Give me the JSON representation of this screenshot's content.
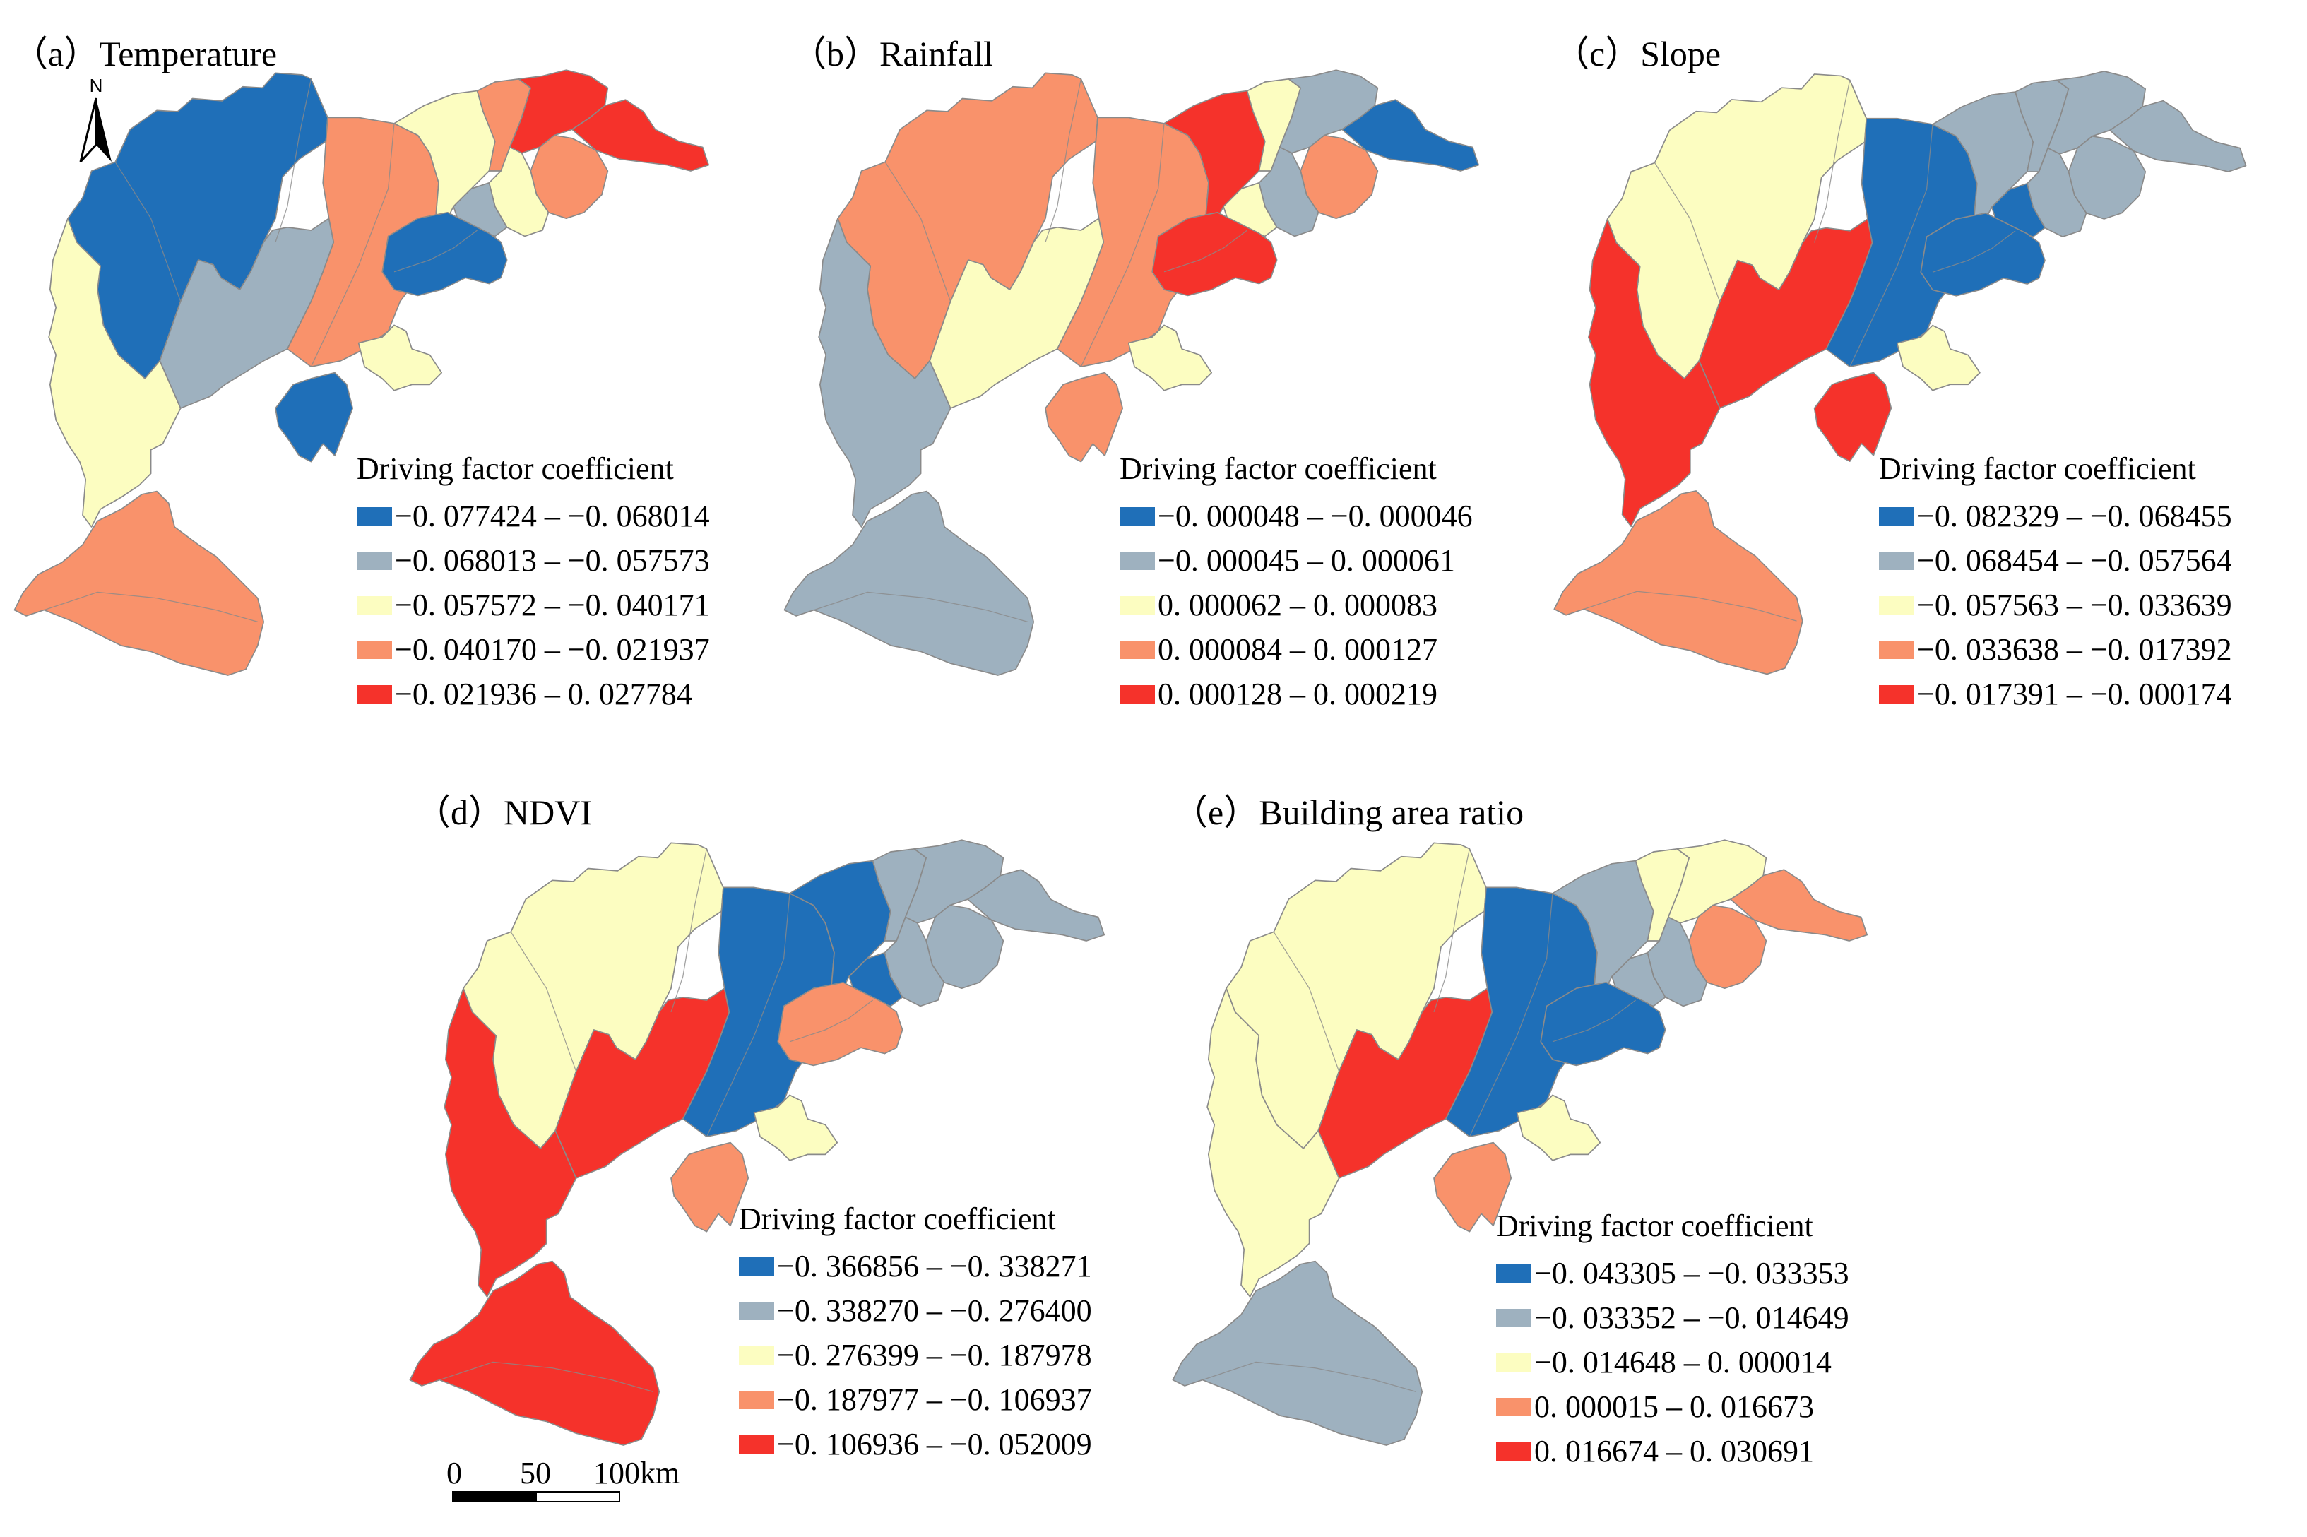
{
  "colors": {
    "class1": "#1f6fb8",
    "class2": "#9eb1bf",
    "class3": "#fcfdc1",
    "class4": "#f9926b",
    "class5": "#f5322b",
    "outline": "#8a8a8a"
  },
  "north_arrow": {
    "label": "N",
    "icon": "north-arrow-icon"
  },
  "scale_bar": {
    "ticks": [
      "0",
      "50",
      "100"
    ],
    "unit": "km"
  },
  "panels": [
    {
      "id": "a",
      "title": "（a）Temperature",
      "legend_title": "Driving factor coefficient",
      "classes": [
        "−0. 077424  –  −0. 068014",
        "−0. 068013  –  −0. 057573",
        "−0. 057572  –  −0. 040171",
        "−0. 040170  –  −0. 021937",
        "−0. 021936  –  0. 027784"
      ],
      "region_classes": [
        1,
        2,
        3,
        4,
        4,
        3,
        4,
        5,
        5,
        4,
        3,
        2,
        1,
        3,
        1
      ]
    },
    {
      "id": "b",
      "title": "（b）Rainfall",
      "legend_title": "Driving factor coefficient",
      "classes": [
        "−0. 000048  –  −0. 000046",
        "−0. 000045  –  0. 000061",
        "0. 000062  –  0. 000083",
        "0. 000084  –  0. 000127",
        "0. 000128  –  0. 000219"
      ],
      "region_classes": [
        4,
        3,
        2,
        2,
        4,
        5,
        3,
        2,
        1,
        4,
        2,
        3,
        5,
        3,
        4
      ]
    },
    {
      "id": "c",
      "title": "（c）Slope",
      "legend_title": "Driving factor coefficient",
      "classes": [
        "−0. 082329  –  −0. 068455",
        "−0. 068454  –  −0. 057564",
        "−0. 057563  –  −0. 033639",
        "−0. 033638  –  −0. 017392",
        "−0. 017391  –  −0. 000174"
      ],
      "region_classes": [
        3,
        5,
        5,
        4,
        1,
        2,
        2,
        2,
        2,
        2,
        2,
        1,
        1,
        3,
        5
      ]
    },
    {
      "id": "d",
      "title": "（d）NDVI",
      "legend_title": "Driving factor coefficient",
      "classes": [
        "−0. 366856  –  −0. 338271",
        "−0. 338270  –  −0. 276400",
        "−0. 276399  –  −0. 187978",
        "−0. 187977  –  −0. 106937",
        "−0. 106936  –  −0. 052009"
      ],
      "region_classes": [
        3,
        5,
        5,
        5,
        1,
        1,
        2,
        2,
        2,
        2,
        2,
        1,
        4,
        3,
        4
      ]
    },
    {
      "id": "e",
      "title": "（e）Building area ratio",
      "legend_title": "Driving factor coefficient",
      "classes": [
        "−0. 043305  –  −0. 033353",
        "−0. 033352  –  −0. 014649",
        "−0. 014648  –  0. 000014",
        "0. 000015  –  0. 016673",
        "0. 016674  –  0. 030691"
      ],
      "region_classes": [
        3,
        5,
        3,
        2,
        1,
        2,
        3,
        3,
        4,
        4,
        2,
        2,
        1,
        3,
        4
      ]
    }
  ]
}
